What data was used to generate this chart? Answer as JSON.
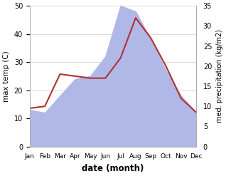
{
  "months": [
    "Jan",
    "Feb",
    "Mar",
    "Apr",
    "May",
    "Jun",
    "Jul",
    "Aug",
    "Sep",
    "Oct",
    "Nov",
    "Dec"
  ],
  "temp_fill": [
    13,
    12,
    18,
    24,
    25,
    32,
    50,
    48,
    38,
    27,
    18,
    12
  ],
  "rain_line": [
    9.5,
    10,
    18,
    17.5,
    17,
    17,
    22,
    32,
    27,
    20,
    12,
    8.5
  ],
  "ylim_left": [
    0,
    50
  ],
  "ylim_right": [
    0,
    35
  ],
  "fill_color": "#b0b8e8",
  "line_color": "#b03030",
  "left_label": "max temp (C)",
  "right_label": "med. precipitation (kg/m2)",
  "xlabel": "date (month)",
  "yticks_left": [
    0,
    10,
    20,
    30,
    40,
    50
  ],
  "yticks_right": [
    0,
    5,
    10,
    15,
    20,
    25,
    30,
    35
  ]
}
